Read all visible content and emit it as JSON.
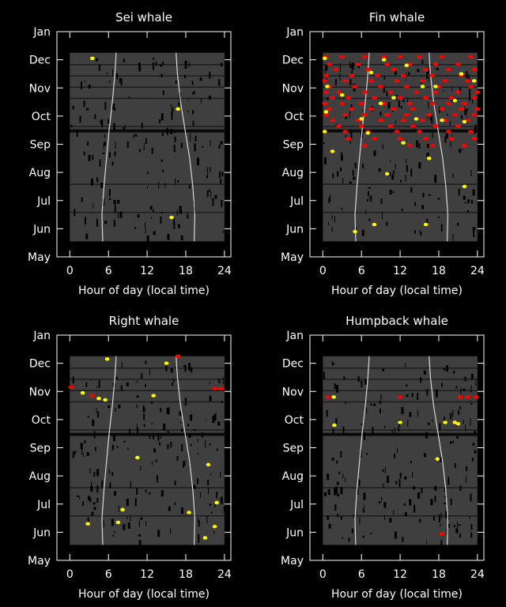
{
  "colors": {
    "background": "#000000",
    "panel_fill": "#3f3f3f",
    "frame": "#ffffff",
    "effort_gap": "#000000",
    "detection_red": "#ff0000",
    "detection_yellow": "#ffff00",
    "daylight_curve": "#d8d8d8"
  },
  "chart_data": [
    {
      "type": "scatter",
      "title": "Sei whale",
      "xlabel": "Hour of day (local time)",
      "xlim": [
        -2,
        25
      ],
      "xticks": [
        0,
        6,
        12,
        18,
        24
      ],
      "ytick_labels": [
        "Jan",
        "Dec",
        "Nov",
        "Oct",
        "Sep",
        "Aug",
        "Jul",
        "Jun",
        "May"
      ],
      "y_units": "months before Jan (May = 8, Jan = 0)",
      "ylim": [
        8,
        0
      ],
      "effort_range": [
        7.45,
        0.75
      ],
      "sunrise_sunset": {
        "month": [
          7.45,
          6.5,
          5.5,
          4.5,
          3.5,
          2.5,
          1.5,
          0.75
        ],
        "sunrise": [
          5.1,
          5.0,
          5.3,
          5.7,
          6.1,
          6.6,
          7.0,
          7.2
        ],
        "sunset": [
          19.3,
          19.4,
          19.1,
          18.6,
          17.9,
          17.2,
          16.7,
          16.5
        ]
      },
      "red_detections": [],
      "yellow_detections": [
        [
          3.5,
          0.95
        ],
        [
          16.8,
          2.75
        ],
        [
          15.8,
          6.6
        ]
      ]
    },
    {
      "type": "scatter",
      "title": "Fin whale",
      "xlabel": "Hour of day (local time)",
      "xlim": [
        -2,
        25
      ],
      "xticks": [
        0,
        6,
        12,
        18,
        24
      ],
      "ytick_labels": [
        "Jan",
        "Dec",
        "Nov",
        "Oct",
        "Sep",
        "Aug",
        "Jul",
        "Jun",
        "May"
      ],
      "y_units": "months before Jan (May = 8, Jan = 0)",
      "ylim": [
        8,
        0
      ],
      "effort_range": [
        7.45,
        0.75
      ],
      "sunrise_sunset": {
        "month": [
          7.45,
          6.5,
          5.5,
          4.5,
          3.5,
          2.5,
          1.5,
          0.75
        ],
        "sunrise": [
          5.1,
          5.0,
          5.3,
          5.7,
          6.1,
          6.6,
          7.0,
          7.2
        ],
        "sunset": [
          19.3,
          19.4,
          19.1,
          18.6,
          17.9,
          17.2,
          16.7,
          16.5
        ]
      },
      "red_detections": [
        [
          0.4,
          0.9
        ],
        [
          3.0,
          0.9
        ],
        [
          6.5,
          0.9
        ],
        [
          9.5,
          0.9
        ],
        [
          12.0,
          0.9
        ],
        [
          15.0,
          0.9
        ],
        [
          18.5,
          0.9
        ],
        [
          23.0,
          0.9
        ],
        [
          1.0,
          1.15
        ],
        [
          5.5,
          1.15
        ],
        [
          10.0,
          1.15
        ],
        [
          13.5,
          1.15
        ],
        [
          17.5,
          1.15
        ],
        [
          21.0,
          1.15
        ],
        [
          2.0,
          1.35
        ],
        [
          7.0,
          1.35
        ],
        [
          11.0,
          1.35
        ],
        [
          16.0,
          1.35
        ],
        [
          19.5,
          1.35
        ],
        [
          23.5,
          1.35
        ],
        [
          0.5,
          1.55
        ],
        [
          4.5,
          1.55
        ],
        [
          8.5,
          1.55
        ],
        [
          12.5,
          1.55
        ],
        [
          17.0,
          1.55
        ],
        [
          21.5,
          1.55
        ],
        [
          0.3,
          1.75
        ],
        [
          3.5,
          1.75
        ],
        [
          7.5,
          1.75
        ],
        [
          11.5,
          1.75
        ],
        [
          15.5,
          1.75
        ],
        [
          19.0,
          1.75
        ],
        [
          22.5,
          1.75
        ],
        [
          1.0,
          1.95
        ],
        [
          5.0,
          1.95
        ],
        [
          9.0,
          1.95
        ],
        [
          13.0,
          1.95
        ],
        [
          18.0,
          1.95
        ],
        [
          23.0,
          1.95
        ],
        [
          0.5,
          2.15
        ],
        [
          2.5,
          2.15
        ],
        [
          6.5,
          2.15
        ],
        [
          10.5,
          2.15
        ],
        [
          14.5,
          2.15
        ],
        [
          17.5,
          2.15
        ],
        [
          21.0,
          2.15
        ],
        [
          24.0,
          2.15
        ],
        [
          1.5,
          2.35
        ],
        [
          4.0,
          2.35
        ],
        [
          8.0,
          2.35
        ],
        [
          12.0,
          2.35
        ],
        [
          16.0,
          2.35
        ],
        [
          20.0,
          2.35
        ],
        [
          23.5,
          2.35
        ],
        [
          0.3,
          2.55
        ],
        [
          3.0,
          2.55
        ],
        [
          6.0,
          2.55
        ],
        [
          9.5,
          2.55
        ],
        [
          13.5,
          2.55
        ],
        [
          17.0,
          2.55
        ],
        [
          19.5,
          2.55
        ],
        [
          22.0,
          2.55
        ],
        [
          1.0,
          2.75
        ],
        [
          4.5,
          2.75
        ],
        [
          7.5,
          2.75
        ],
        [
          11.0,
          2.75
        ],
        [
          14.0,
          2.75
        ],
        [
          18.5,
          2.75
        ],
        [
          21.5,
          2.75
        ],
        [
          24.0,
          2.75
        ],
        [
          0.5,
          2.95
        ],
        [
          3.5,
          2.95
        ],
        [
          6.5,
          2.95
        ],
        [
          10.0,
          2.95
        ],
        [
          13.0,
          2.95
        ],
        [
          16.5,
          2.95
        ],
        [
          20.5,
          2.95
        ],
        [
          23.5,
          2.95
        ],
        [
          1.5,
          3.15
        ],
        [
          5.5,
          3.15
        ],
        [
          9.0,
          3.15
        ],
        [
          12.5,
          3.15
        ],
        [
          15.5,
          3.15
        ],
        [
          19.0,
          3.15
        ],
        [
          22.5,
          3.15
        ],
        [
          2.5,
          3.35
        ],
        [
          6.0,
          3.35
        ],
        [
          10.5,
          3.35
        ],
        [
          14.0,
          3.35
        ],
        [
          17.5,
          3.35
        ],
        [
          21.0,
          3.35
        ],
        [
          3.5,
          3.55
        ],
        [
          7.0,
          3.55
        ],
        [
          11.5,
          3.55
        ],
        [
          15.0,
          3.55
        ],
        [
          19.5,
          3.55
        ],
        [
          23.0,
          3.55
        ],
        [
          4.0,
          3.8
        ],
        [
          8.0,
          3.8
        ],
        [
          12.0,
          3.8
        ],
        [
          16.0,
          3.8
        ],
        [
          20.0,
          3.8
        ],
        [
          23.5,
          3.8
        ],
        [
          6.5,
          4.05
        ],
        [
          13.5,
          4.05
        ],
        [
          17.0,
          4.05
        ],
        [
          22.0,
          4.05
        ]
      ],
      "yellow_detections": [
        [
          0.3,
          0.95
        ],
        [
          9.5,
          1.0
        ],
        [
          13.0,
          1.2
        ],
        [
          7.5,
          1.45
        ],
        [
          21.5,
          1.5
        ],
        [
          23.5,
          1.75
        ],
        [
          0.7,
          1.95
        ],
        [
          15.5,
          1.95
        ],
        [
          17.5,
          1.95
        ],
        [
          3.0,
          2.25
        ],
        [
          11.0,
          2.35
        ],
        [
          20.5,
          2.45
        ],
        [
          9.0,
          2.55
        ],
        [
          0.5,
          2.85
        ],
        [
          6.0,
          3.1
        ],
        [
          14.5,
          3.1
        ],
        [
          18.5,
          3.15
        ],
        [
          22.0,
          3.2
        ],
        [
          0.3,
          3.55
        ],
        [
          7.0,
          3.6
        ],
        [
          12.5,
          3.95
        ],
        [
          1.5,
          4.25
        ],
        [
          16.5,
          4.5
        ],
        [
          10.0,
          5.05
        ],
        [
          22.0,
          5.5
        ],
        [
          8.0,
          6.85
        ],
        [
          16.0,
          6.85
        ],
        [
          5.0,
          7.1
        ]
      ]
    },
    {
      "type": "scatter",
      "title": "Right whale",
      "xlabel": "Hour of day (local time)",
      "xlim": [
        -2,
        25
      ],
      "xticks": [
        0,
        6,
        12,
        18,
        24
      ],
      "ytick_labels": [
        "Jan",
        "Dec",
        "Nov",
        "Oct",
        "Sep",
        "Aug",
        "Jul",
        "Jun",
        "May"
      ],
      "y_units": "months before Jan (May = 8, Jan = 0)",
      "ylim": [
        8,
        0
      ],
      "effort_range": [
        7.45,
        0.75
      ],
      "sunrise_sunset": {
        "month": [
          7.45,
          6.5,
          5.5,
          4.5,
          3.5,
          2.5,
          1.5,
          0.75
        ],
        "sunrise": [
          5.1,
          5.0,
          5.3,
          5.7,
          6.1,
          6.6,
          7.0,
          7.2
        ],
        "sunset": [
          19.3,
          19.4,
          19.1,
          18.6,
          17.9,
          17.2,
          16.7,
          16.5
        ]
      },
      "red_detections": [
        [
          16.8,
          0.75
        ],
        [
          0.2,
          1.85
        ],
        [
          3.5,
          2.15
        ],
        [
          22.5,
          1.9
        ],
        [
          23.5,
          1.9
        ]
      ],
      "yellow_detections": [
        [
          5.8,
          0.85
        ],
        [
          15.0,
          1.0
        ],
        [
          2.0,
          2.05
        ],
        [
          4.5,
          2.25
        ],
        [
          13.0,
          2.15
        ],
        [
          5.5,
          2.3
        ],
        [
          10.5,
          4.35
        ],
        [
          21.5,
          4.6
        ],
        [
          8.2,
          6.2
        ],
        [
          18.5,
          6.3
        ],
        [
          2.8,
          6.7
        ],
        [
          7.5,
          6.65
        ],
        [
          22.8,
          5.95
        ],
        [
          22.5,
          6.8
        ],
        [
          21.0,
          7.2
        ]
      ]
    },
    {
      "type": "scatter",
      "title": "Humpback whale",
      "xlabel": "Hour of day (local time)",
      "xlim": [
        -2,
        25
      ],
      "xticks": [
        0,
        6,
        12,
        18,
        24
      ],
      "ytick_labels": [
        "Jan",
        "Dec",
        "Nov",
        "Oct",
        "Sep",
        "Aug",
        "Jul",
        "Jun",
        "May"
      ],
      "y_units": "months before Jan (May = 8, Jan = 0)",
      "ylim": [
        8,
        0
      ],
      "effort_range": [
        7.45,
        0.75
      ],
      "sunrise_sunset": {
        "month": [
          7.45,
          6.5,
          5.5,
          4.5,
          3.5,
          2.5,
          1.5,
          0.75
        ],
        "sunrise": [
          5.1,
          5.0,
          5.3,
          5.7,
          6.1,
          6.6,
          7.0,
          7.2
        ],
        "sunset": [
          19.3,
          19.4,
          19.1,
          18.6,
          17.9,
          17.2,
          16.7,
          16.5
        ]
      },
      "red_detections": [
        [
          0.8,
          2.2
        ],
        [
          12.0,
          2.2
        ],
        [
          21.3,
          2.2
        ],
        [
          22.5,
          2.2
        ],
        [
          23.8,
          2.2
        ],
        [
          18.5,
          7.05
        ]
      ],
      "yellow_detections": [
        [
          1.7,
          2.2
        ],
        [
          1.8,
          3.2
        ],
        [
          12.0,
          3.1
        ],
        [
          19.0,
          3.1
        ],
        [
          20.5,
          3.1
        ],
        [
          21.0,
          3.15
        ],
        [
          17.8,
          4.4
        ]
      ]
    }
  ]
}
